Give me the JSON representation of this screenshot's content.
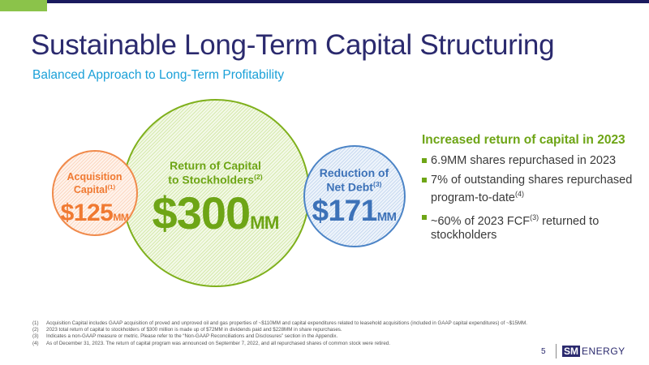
{
  "slide": {
    "title": "Sustainable Long-Term Capital Structuring",
    "subtitle": "Balanced Approach to Long-Term Profitability",
    "page_number": "5"
  },
  "bubbles": {
    "acquisition": {
      "label_line1": "Acquisition",
      "label_line2": "Capital",
      "sup": "(1)",
      "value": "$125",
      "unit": "MM"
    },
    "return": {
      "label_line1": "Return of Capital",
      "label_line2": "to Stockholders",
      "sup": "(2)",
      "value": "$300",
      "unit": "MM"
    },
    "debt": {
      "label_line1": "Reduction of",
      "label_line2": "Net Debt",
      "sup": "(3)",
      "value": "$171",
      "unit": "MM"
    }
  },
  "highlights": {
    "title": "Increased return of capital in 2023",
    "items": [
      {
        "text": "6.9MM shares repurchased in 2023"
      },
      {
        "text": "7% of outstanding shares repurchased program-to-date",
        "sup": "(4)"
      },
      {
        "text_before": "~60% of 2023 FCF",
        "sup": "(3)",
        "text_after": " returned to stockholders"
      }
    ]
  },
  "footnotes": [
    {
      "num": "(1)",
      "text": "Acquisition Capital includes GAAP acquisition of proved and unproved oil and gas properties of ~$110MM and capital expenditures related to leasehold acquisitions (included in GAAP capital expenditures) of ~$15MM."
    },
    {
      "num": "(2)",
      "text": "2023 total return of capital to stockholders of $300 million is made up of $72MM in dividends paid and $228MM in share repurchases."
    },
    {
      "num": "(3)",
      "text": "Indicates a non-GAAP measure or metric. Please refer to the “Non-GAAP Reconciliations and Disclosures” section in the Appendix."
    },
    {
      "num": "(4)",
      "text": "As of December 31, 2023. The return of capital program was announced on September 7, 2022, and all repurchased shares of common stock were retired."
    }
  ],
  "logo": {
    "sm": "SM",
    "energy": "ENERGY"
  },
  "colors": {
    "navy": "#2b2a6e",
    "green": "#6ea516",
    "orange": "#f07a32",
    "blue": "#3d72b8",
    "cyan": "#1aa0d8"
  }
}
